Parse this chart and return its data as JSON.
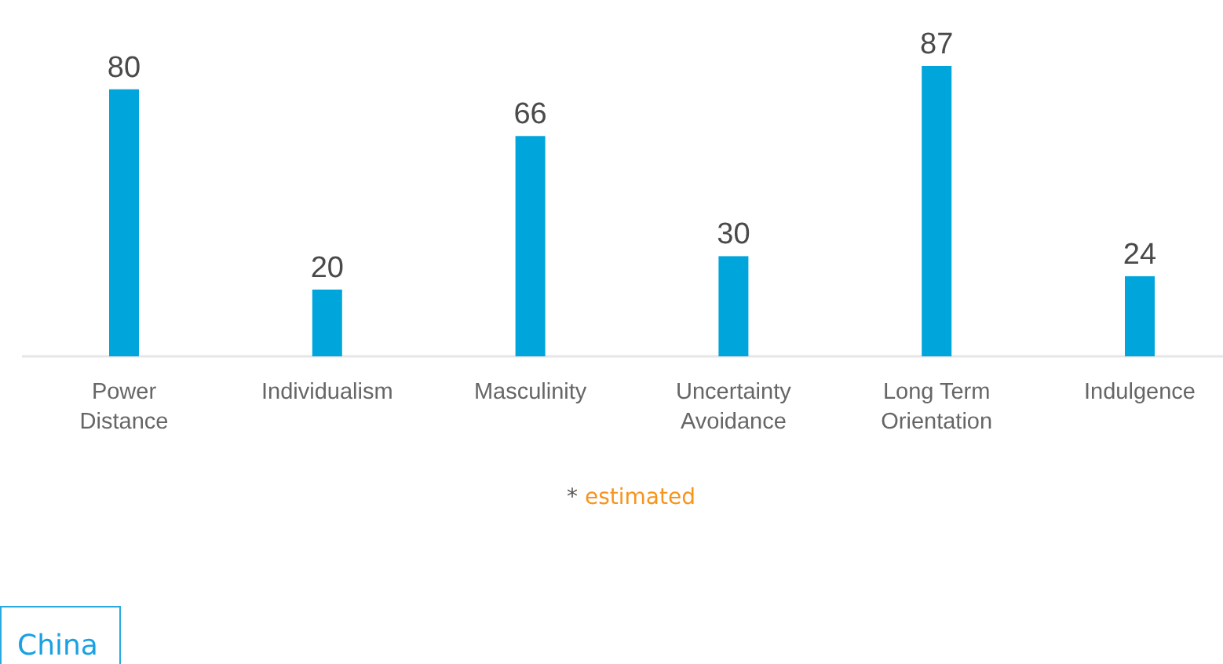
{
  "chart_data": {
    "type": "bar",
    "title": "China",
    "categories": [
      "Power Distance",
      "Individualism",
      "Masculinity",
      "Uncertainty Avoidance",
      "Long Term Orientation",
      "Indulgence"
    ],
    "values": [
      80,
      20,
      66,
      30,
      87,
      24
    ],
    "color": "#00a5dc",
    "data_labels": true,
    "annotations": [
      "* estimated"
    ]
  }
}
